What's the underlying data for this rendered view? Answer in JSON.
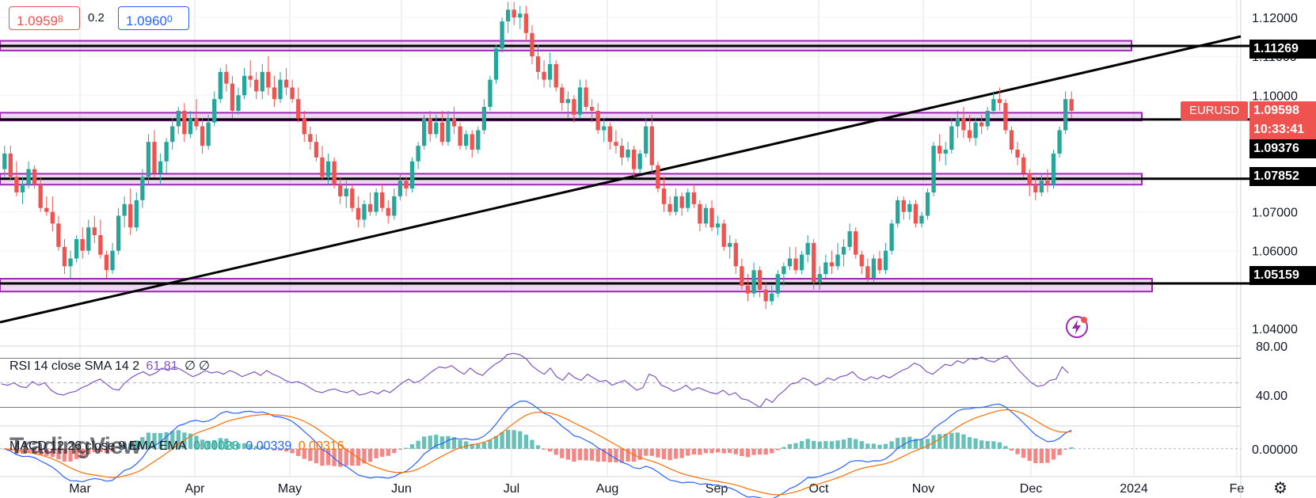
{
  "quote": {
    "sell_main": "1.0959",
    "sell_sup": "8",
    "spread": "0.2",
    "buy_main": "1.0960",
    "buy_sup": "0"
  },
  "symbol": "EURUSD",
  "last_price": "1.09598",
  "countdown": "10:33:41",
  "level_tags": [
    "1.11269",
    "1.09376",
    "1.07852",
    "1.05159"
  ],
  "watermark": "TradingView",
  "colors": {
    "up": "#26a69a",
    "down": "#ef5350",
    "zone": "#9c27b0",
    "rsi": "#7e57c2",
    "macd": "#2962ff",
    "signal": "#ff6d00",
    "trend": "#000000"
  },
  "rsi_legend": {
    "name": "RSI",
    "params": "14 close SMA 14 2",
    "value": "61.81",
    "v2": "∅",
    "v3": "∅"
  },
  "macd_legend": {
    "name": "MACD",
    "params": "12 26 close 9 EMA EMA",
    "hist": "0.00023",
    "macd": "0.00339",
    "signal": "0.00316"
  },
  "chart_data": {
    "type": "candlestick",
    "symbol": "EURUSD",
    "price_axis_ticks": [
      "1.12000",
      "1.11000",
      "1.10000",
      "1.07000",
      "1.06000",
      "1.04000"
    ],
    "price_ylim": [
      1.0355,
      1.1245
    ],
    "time_axis_labels": [
      "Mar",
      "Apr",
      "May",
      "Jun",
      "Jul",
      "Aug",
      "Sep",
      "Oct",
      "Nov",
      "Dec",
      "2024",
      "Fe"
    ],
    "horizontal_levels": [
      1.11269,
      1.09376,
      1.07852,
      1.05159
    ],
    "supply_demand_zones": [
      [
        1.1115,
        1.114
      ],
      [
        1.0935,
        1.0955
      ],
      [
        1.077,
        1.0798
      ],
      [
        1.0495,
        1.0528
      ]
    ],
    "trendline": {
      "start": [
        "2023-02-01",
        1.0422
      ],
      "end": [
        "2024-02-08",
        1.1158
      ]
    },
    "rsi": {
      "ticks": [
        "80.00",
        "40.00"
      ],
      "ylim": [
        20,
        80
      ],
      "levels": [
        70,
        50,
        30
      ],
      "values": [
        49,
        48,
        50,
        47,
        46,
        51,
        48,
        50,
        44,
        41,
        40,
        42,
        43,
        46,
        48,
        51,
        53,
        49,
        45,
        44,
        50,
        54,
        57,
        59,
        56,
        58,
        62,
        60,
        63,
        61,
        58,
        55,
        57,
        60,
        58,
        59,
        57,
        60,
        58,
        55,
        57,
        59,
        56,
        60,
        57,
        55,
        52,
        50,
        51,
        49,
        46,
        43,
        42,
        44,
        45,
        43,
        42,
        44,
        40,
        41,
        43,
        41,
        44,
        42,
        46,
        50,
        53,
        50,
        52,
        56,
        60,
        63,
        62,
        64,
        60,
        57,
        62,
        58,
        56,
        61,
        65,
        68,
        73,
        74,
        73,
        70,
        64,
        60,
        57,
        62,
        55,
        52,
        58,
        54,
        52,
        57,
        54,
        51,
        52,
        48,
        50,
        52,
        48,
        44,
        46,
        57,
        55,
        48,
        46,
        43,
        45,
        48,
        44,
        46,
        44,
        42,
        41,
        44,
        40,
        42,
        37,
        36,
        33,
        30,
        37,
        34,
        40,
        44,
        49,
        50,
        54,
        52,
        48,
        50,
        54,
        52,
        55,
        56,
        59,
        54,
        52,
        55,
        53,
        56,
        54,
        57,
        60,
        62,
        66,
        64,
        59,
        57,
        61,
        65,
        64,
        68,
        66,
        70,
        69,
        71,
        68,
        67,
        70,
        72,
        66,
        60,
        55,
        50,
        47,
        48,
        52,
        53,
        63,
        58
      ],
      "last": 61.81
    },
    "macd": {
      "ticks": [
        "0.00000"
      ],
      "ylim": [
        -0.0055,
        0.0045
      ],
      "hist_last": 0.00023,
      "macd_last": 0.00339,
      "signal_last": 0.00316
    },
    "candles": [
      [
        1.081,
        1.087,
        1.079,
        1.085
      ],
      [
        1.085,
        1.087,
        1.078,
        1.079
      ],
      [
        1.079,
        1.083,
        1.074,
        1.075
      ],
      [
        1.075,
        1.079,
        1.072,
        1.077
      ],
      [
        1.077,
        1.083,
        1.076,
        1.081
      ],
      [
        1.081,
        1.082,
        1.076,
        1.077
      ],
      [
        1.077,
        1.079,
        1.07,
        1.071
      ],
      [
        1.071,
        1.074,
        1.069,
        1.07
      ],
      [
        1.07,
        1.074,
        1.065,
        1.067
      ],
      [
        1.067,
        1.069,
        1.06,
        1.061
      ],
      [
        1.061,
        1.063,
        1.054,
        1.056
      ],
      [
        1.056,
        1.06,
        1.053,
        1.058
      ],
      [
        1.058,
        1.064,
        1.057,
        1.063
      ],
      [
        1.063,
        1.066,
        1.058,
        1.06
      ],
      [
        1.06,
        1.068,
        1.059,
        1.066
      ],
      [
        1.066,
        1.069,
        1.062,
        1.064
      ],
      [
        1.064,
        1.068,
        1.058,
        1.059
      ],
      [
        1.059,
        1.06,
        1.053,
        1.055
      ],
      [
        1.055,
        1.062,
        1.054,
        1.06
      ],
      [
        1.06,
        1.071,
        1.059,
        1.069
      ],
      [
        1.069,
        1.074,
        1.066,
        1.072
      ],
      [
        1.072,
        1.076,
        1.064,
        1.066
      ],
      [
        1.066,
        1.075,
        1.065,
        1.073
      ],
      [
        1.073,
        1.081,
        1.071,
        1.079
      ],
      [
        1.079,
        1.09,
        1.077,
        1.088
      ],
      [
        1.088,
        1.091,
        1.079,
        1.08
      ],
      [
        1.08,
        1.085,
        1.077,
        1.083
      ],
      [
        1.083,
        1.089,
        1.08,
        1.088
      ],
      [
        1.088,
        1.094,
        1.086,
        1.092
      ],
      [
        1.092,
        1.097,
        1.09,
        1.096
      ],
      [
        1.096,
        1.098,
        1.088,
        1.09
      ],
      [
        1.09,
        1.096,
        1.089,
        1.094
      ],
      [
        1.094,
        1.099,
        1.091,
        1.092
      ],
      [
        1.092,
        1.094,
        1.085,
        1.087
      ],
      [
        1.087,
        1.095,
        1.086,
        1.093
      ],
      [
        1.093,
        1.101,
        1.092,
        1.099
      ],
      [
        1.099,
        1.107,
        1.098,
        1.106
      ],
      [
        1.106,
        1.108,
        1.101,
        1.103
      ],
      [
        1.103,
        1.105,
        1.094,
        1.096
      ],
      [
        1.096,
        1.102,
        1.095,
        1.1
      ],
      [
        1.1,
        1.107,
        1.099,
        1.105
      ],
      [
        1.105,
        1.109,
        1.102,
        1.104
      ],
      [
        1.104,
        1.106,
        1.099,
        1.101
      ],
      [
        1.101,
        1.108,
        1.099,
        1.106
      ],
      [
        1.106,
        1.11,
        1.1,
        1.102
      ],
      [
        1.102,
        1.105,
        1.097,
        1.099
      ],
      [
        1.099,
        1.106,
        1.098,
        1.104
      ],
      [
        1.104,
        1.107,
        1.1,
        1.102
      ],
      [
        1.102,
        1.104,
        1.098,
        1.099
      ],
      [
        1.099,
        1.102,
        1.093,
        1.094
      ],
      [
        1.094,
        1.096,
        1.088,
        1.09
      ],
      [
        1.09,
        1.092,
        1.086,
        1.088
      ],
      [
        1.088,
        1.09,
        1.083,
        1.084
      ],
      [
        1.084,
        1.087,
        1.078,
        1.079
      ],
      [
        1.079,
        1.085,
        1.077,
        1.083
      ],
      [
        1.083,
        1.084,
        1.076,
        1.077
      ],
      [
        1.077,
        1.079,
        1.072,
        1.074
      ],
      [
        1.074,
        1.078,
        1.071,
        1.076
      ],
      [
        1.076,
        1.077,
        1.07,
        1.071
      ],
      [
        1.071,
        1.074,
        1.066,
        1.068
      ],
      [
        1.068,
        1.073,
        1.066,
        1.072
      ],
      [
        1.072,
        1.075,
        1.069,
        1.07
      ],
      [
        1.07,
        1.076,
        1.069,
        1.075
      ],
      [
        1.075,
        1.077,
        1.07,
        1.071
      ],
      [
        1.071,
        1.073,
        1.067,
        1.069
      ],
      [
        1.069,
        1.076,
        1.068,
        1.074
      ],
      [
        1.074,
        1.08,
        1.073,
        1.078
      ],
      [
        1.078,
        1.079,
        1.074,
        1.076
      ],
      [
        1.076,
        1.084,
        1.075,
        1.083
      ],
      [
        1.083,
        1.088,
        1.081,
        1.087
      ],
      [
        1.087,
        1.095,
        1.086,
        1.094
      ],
      [
        1.094,
        1.096,
        1.088,
        1.09
      ],
      [
        1.09,
        1.095,
        1.089,
        1.093
      ],
      [
        1.093,
        1.096,
        1.087,
        1.088
      ],
      [
        1.088,
        1.096,
        1.087,
        1.094
      ],
      [
        1.094,
        1.097,
        1.09,
        1.092
      ],
      [
        1.092,
        1.093,
        1.086,
        1.087
      ],
      [
        1.087,
        1.091,
        1.086,
        1.09
      ],
      [
        1.09,
        1.091,
        1.084,
        1.086
      ],
      [
        1.086,
        1.092,
        1.085,
        1.091
      ],
      [
        1.091,
        1.099,
        1.09,
        1.097
      ],
      [
        1.097,
        1.105,
        1.096,
        1.104
      ],
      [
        1.104,
        1.113,
        1.103,
        1.112
      ],
      [
        1.112,
        1.12,
        1.111,
        1.119
      ],
      [
        1.119,
        1.124,
        1.116,
        1.122
      ],
      [
        1.122,
        1.124,
        1.118,
        1.12
      ],
      [
        1.12,
        1.123,
        1.117,
        1.121
      ],
      [
        1.121,
        1.123,
        1.114,
        1.116
      ],
      [
        1.116,
        1.118,
        1.108,
        1.11
      ],
      [
        1.11,
        1.113,
        1.104,
        1.106
      ],
      [
        1.106,
        1.109,
        1.102,
        1.104
      ],
      [
        1.104,
        1.111,
        1.102,
        1.108
      ],
      [
        1.108,
        1.109,
        1.101,
        1.102
      ],
      [
        1.102,
        1.103,
        1.096,
        1.098
      ],
      [
        1.098,
        1.101,
        1.094,
        1.099
      ],
      [
        1.099,
        1.1,
        1.093,
        1.095
      ],
      [
        1.095,
        1.104,
        1.094,
        1.102
      ],
      [
        1.102,
        1.104,
        1.096,
        1.097
      ],
      [
        1.097,
        1.099,
        1.093,
        1.096
      ],
      [
        1.096,
        1.098,
        1.09,
        1.091
      ],
      [
        1.091,
        1.094,
        1.088,
        1.092
      ],
      [
        1.092,
        1.093,
        1.086,
        1.088
      ],
      [
        1.088,
        1.091,
        1.085,
        1.087
      ],
      [
        1.087,
        1.089,
        1.082,
        1.084
      ],
      [
        1.084,
        1.088,
        1.083,
        1.086
      ],
      [
        1.086,
        1.087,
        1.079,
        1.081
      ],
      [
        1.081,
        1.086,
        1.08,
        1.085
      ],
      [
        1.085,
        1.094,
        1.084,
        1.092
      ],
      [
        1.092,
        1.095,
        1.08,
        1.082
      ],
      [
        1.082,
        1.083,
        1.075,
        1.076
      ],
      [
        1.076,
        1.079,
        1.07,
        1.072
      ],
      [
        1.072,
        1.074,
        1.069,
        1.07
      ],
      [
        1.07,
        1.076,
        1.069,
        1.074
      ],
      [
        1.074,
        1.075,
        1.069,
        1.071
      ],
      [
        1.071,
        1.076,
        1.07,
        1.075
      ],
      [
        1.075,
        1.077,
        1.071,
        1.072
      ],
      [
        1.072,
        1.073,
        1.065,
        1.067
      ],
      [
        1.067,
        1.072,
        1.066,
        1.071
      ],
      [
        1.071,
        1.073,
        1.065,
        1.066
      ],
      [
        1.066,
        1.069,
        1.064,
        1.067
      ],
      [
        1.067,
        1.068,
        1.06,
        1.061
      ],
      [
        1.061,
        1.064,
        1.058,
        1.062
      ],
      [
        1.062,
        1.063,
        1.054,
        1.056
      ],
      [
        1.056,
        1.058,
        1.05,
        1.051
      ],
      [
        1.051,
        1.054,
        1.047,
        1.049
      ],
      [
        1.049,
        1.057,
        1.048,
        1.055
      ],
      [
        1.055,
        1.056,
        1.048,
        1.05
      ],
      [
        1.05,
        1.052,
        1.045,
        1.047
      ],
      [
        1.047,
        1.051,
        1.046,
        1.049
      ],
      [
        1.049,
        1.055,
        1.048,
        1.054
      ],
      [
        1.054,
        1.057,
        1.051,
        1.056
      ],
      [
        1.056,
        1.061,
        1.055,
        1.058
      ],
      [
        1.058,
        1.061,
        1.054,
        1.055
      ],
      [
        1.055,
        1.06,
        1.054,
        1.059
      ],
      [
        1.059,
        1.064,
        1.057,
        1.062
      ],
      [
        1.062,
        1.063,
        1.05,
        1.052
      ],
      [
        1.052,
        1.056,
        1.05,
        1.054
      ],
      [
        1.054,
        1.059,
        1.053,
        1.057
      ],
      [
        1.057,
        1.06,
        1.054,
        1.056
      ],
      [
        1.056,
        1.062,
        1.055,
        1.059
      ],
      [
        1.059,
        1.063,
        1.056,
        1.061
      ],
      [
        1.061,
        1.067,
        1.06,
        1.065
      ],
      [
        1.065,
        1.066,
        1.058,
        1.059
      ],
      [
        1.059,
        1.06,
        1.054,
        1.056
      ],
      [
        1.056,
        1.058,
        1.052,
        1.053
      ],
      [
        1.053,
        1.059,
        1.052,
        1.058
      ],
      [
        1.058,
        1.06,
        1.054,
        1.055
      ],
      [
        1.055,
        1.062,
        1.054,
        1.06
      ],
      [
        1.06,
        1.068,
        1.059,
        1.067
      ],
      [
        1.067,
        1.074,
        1.066,
        1.073
      ],
      [
        1.073,
        1.074,
        1.068,
        1.07
      ],
      [
        1.07,
        1.073,
        1.068,
        1.072
      ],
      [
        1.072,
        1.073,
        1.066,
        1.067
      ],
      [
        1.067,
        1.07,
        1.066,
        1.069
      ],
      [
        1.069,
        1.076,
        1.068,
        1.075
      ],
      [
        1.075,
        1.088,
        1.074,
        1.087
      ],
      [
        1.087,
        1.09,
        1.083,
        1.085
      ],
      [
        1.085,
        1.088,
        1.082,
        1.086
      ],
      [
        1.086,
        1.094,
        1.085,
        1.092
      ],
      [
        1.092,
        1.096,
        1.089,
        1.094
      ],
      [
        1.094,
        1.097,
        1.089,
        1.091
      ],
      [
        1.091,
        1.095,
        1.088,
        1.089
      ],
      [
        1.089,
        1.094,
        1.087,
        1.093
      ],
      [
        1.093,
        1.095,
        1.09,
        1.092
      ],
      [
        1.092,
        1.097,
        1.091,
        1.096
      ],
      [
        1.096,
        1.101,
        1.095,
        1.099
      ],
      [
        1.099,
        1.102,
        1.096,
        1.098
      ],
      [
        1.098,
        1.099,
        1.09,
        1.091
      ],
      [
        1.091,
        1.092,
        1.085,
        1.086
      ],
      [
        1.086,
        1.088,
        1.082,
        1.084
      ],
      [
        1.084,
        1.085,
        1.079,
        1.08
      ],
      [
        1.08,
        1.081,
        1.074,
        1.077
      ],
      [
        1.077,
        1.079,
        1.073,
        1.075
      ],
      [
        1.075,
        1.08,
        1.074,
        1.078
      ],
      [
        1.078,
        1.081,
        1.075,
        1.077
      ],
      [
        1.077,
        1.086,
        1.076,
        1.085
      ],
      [
        1.085,
        1.092,
        1.084,
        1.091
      ],
      [
        1.091,
        1.101,
        1.09,
        1.099
      ],
      [
        1.099,
        1.101,
        1.094,
        1.096
      ]
    ]
  }
}
